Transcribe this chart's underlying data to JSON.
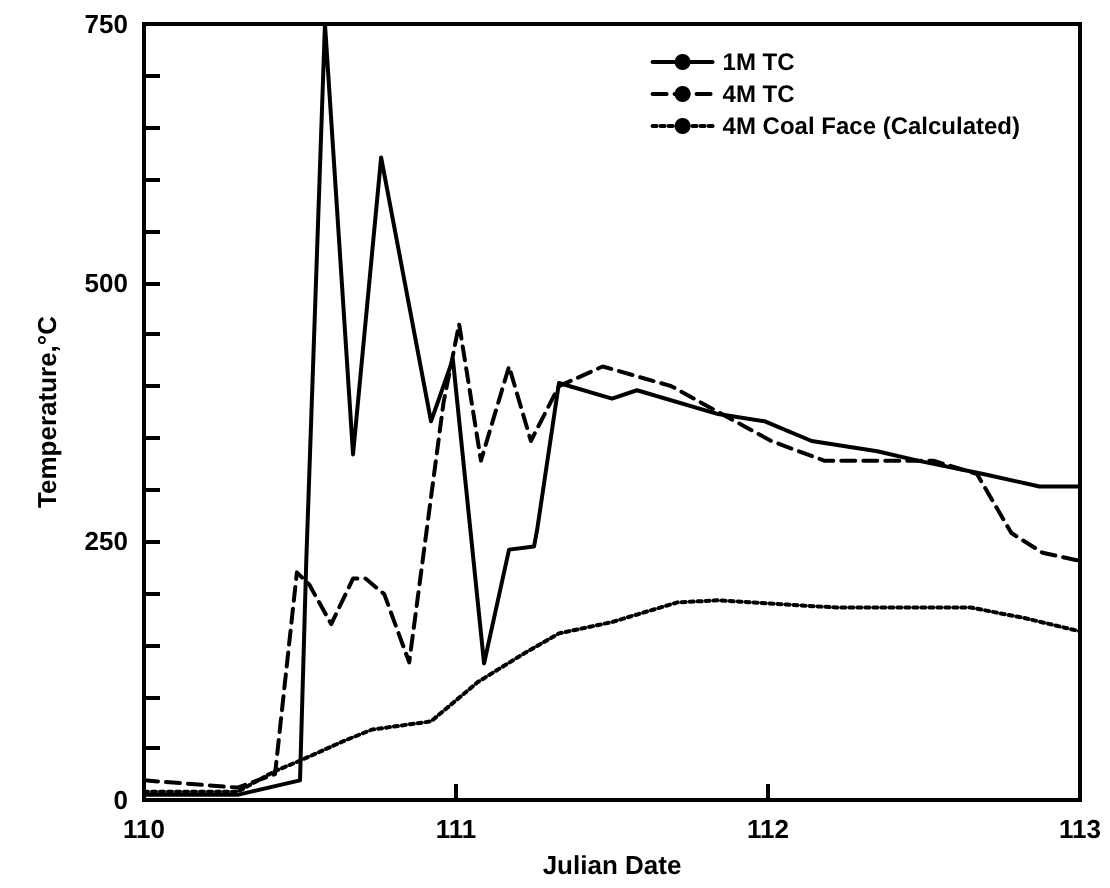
{
  "chart_data": {
    "type": "line",
    "xlabel": "Julian Date",
    "ylabel": "Temperature,°C",
    "xlim": [
      110,
      113
    ],
    "xticks": [
      110,
      111,
      112,
      113
    ],
    "ylim": [
      0,
      750
    ],
    "yticks": [
      0,
      {
        "value": 50,
        "label": null
      },
      {
        "value": 100,
        "label": null
      },
      {
        "value": 150,
        "label": null
      },
      {
        "value": 200,
        "label": null
      },
      250,
      {
        "value": 300,
        "label": null
      },
      {
        "value": 350,
        "label": null
      },
      {
        "value": 400,
        "label": null
      },
      {
        "value": 450,
        "label": null
      },
      500,
      {
        "value": 550,
        "label": null
      },
      {
        "value": 600,
        "label": null
      },
      {
        "value": 650,
        "label": null
      },
      {
        "value": 700,
        "label": null
      },
      750
    ],
    "grid": false,
    "legend": "top right",
    "marker": "none",
    "series": [
      {
        "name": "1M TC",
        "color": "#000000",
        "line_style": "solid",
        "x": [
          110,
          110.3,
          110.5,
          110.52,
          110.58,
          110.67,
          110.76,
          110.92,
          110.99,
          111.09,
          111.17,
          111.25,
          111.26,
          111.33,
          111.5,
          111.58,
          111.84,
          111.99,
          112.14,
          112.35,
          112.48,
          112.69,
          112.87,
          113
        ],
        "values": [
          5,
          5,
          19,
          230,
          750,
          334,
          621,
          366,
          426,
          132,
          242,
          245,
          261,
          403,
          388,
          396,
          373,
          366,
          347,
          337,
          328,
          315,
          303,
          303
        ]
      },
      {
        "name": "4M TC",
        "color": "#000000",
        "line_style": "dashed",
        "x": [
          110,
          110.3,
          110.42,
          110.49,
          110.53,
          110.6,
          110.67,
          110.71,
          110.77,
          110.85,
          110.96,
          111.01,
          111.08,
          111.17,
          111.24,
          111.33,
          111.47,
          111.69,
          111.84,
          112.01,
          112.18,
          112.4,
          112.53,
          112.67,
          112.78,
          112.88,
          113
        ],
        "values": [
          19,
          12,
          25,
          220,
          208,
          170,
          214,
          214,
          199,
          133,
          384,
          460,
          328,
          419,
          347,
          400,
          419,
          400,
          375,
          347,
          328,
          328,
          328,
          315,
          258,
          239,
          231
        ]
      },
      {
        "name": "4M Coal Face (Calculated)",
        "color": "#000000",
        "line_style": "dotted",
        "x": [
          110,
          110.3,
          110.42,
          110.5,
          110.64,
          110.73,
          110.92,
          111.07,
          111.22,
          111.33,
          111.5,
          111.71,
          111.84,
          112.22,
          112.65,
          112.82,
          113
        ],
        "values": [
          8,
          8,
          28,
          38,
          57,
          68,
          76,
          114,
          142,
          161,
          172,
          191,
          193,
          186,
          186,
          176,
          163
        ]
      }
    ]
  }
}
